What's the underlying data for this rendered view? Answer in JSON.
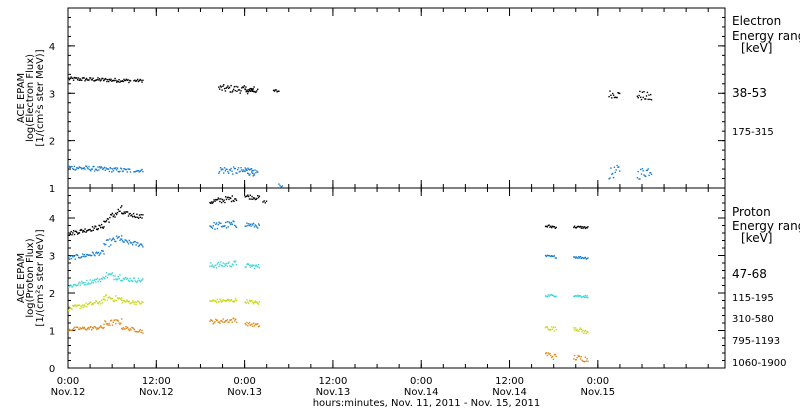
{
  "chart_data": [
    {
      "type": "scatter",
      "panel": "electron",
      "ylabel_lines": [
        "ACE EPAM",
        "log(Electron Flux)",
        "[1/(cm²s ster MeV)]"
      ],
      "ylim": [
        1,
        4.8
      ],
      "yticks": [
        "1",
        "2",
        "3",
        "4"
      ],
      "legend_title": [
        "Electron",
        "Energy range",
        "[keV]"
      ],
      "series": [
        {
          "name": "38-53",
          "color": "#000000",
          "segments": [
            {
              "x": [
                0.0,
                0.35
              ],
              "y": [
                3.32,
                3.28
              ],
              "amp": 0.04
            },
            {
              "x": [
                0.37,
                0.42
              ],
              "y": [
                3.28,
                3.28
              ],
              "amp": 0.03
            },
            {
              "x": [
                0.85,
                1.05
              ],
              "y": [
                3.12,
                3.08
              ],
              "amp": 0.08
            },
            {
              "x": [
                1.0,
                1.07
              ],
              "y": [
                3.08,
                3.06
              ],
              "amp": 0.04
            },
            {
              "x": [
                1.16,
                1.19
              ],
              "y": [
                3.06,
                3.06
              ],
              "amp": 0.04
            },
            {
              "x": [
                3.06,
                3.12
              ],
              "y": [
                3.0,
                2.98
              ],
              "amp": 0.08
            },
            {
              "x": [
                3.22,
                3.3
              ],
              "y": [
                2.98,
                2.92
              ],
              "amp": 0.1
            }
          ]
        },
        {
          "name": "175-315",
          "color": "#1a7fd0",
          "segments": [
            {
              "x": [
                0.0,
                0.35
              ],
              "y": [
                1.45,
                1.38
              ],
              "amp": 0.05
            },
            {
              "x": [
                0.37,
                0.42
              ],
              "y": [
                1.38,
                1.38
              ],
              "amp": 0.03
            },
            {
              "x": [
                0.85,
                1.05
              ],
              "y": [
                1.4,
                1.35
              ],
              "amp": 0.08
            },
            {
              "x": [
                1.0,
                1.07
              ],
              "y": [
                1.38,
                1.35
              ],
              "amp": 0.06
            },
            {
              "x": [
                1.19,
                1.21
              ],
              "y": [
                1.08,
                1.05
              ],
              "amp": 0.02
            },
            {
              "x": [
                3.06,
                3.12
              ],
              "y": [
                1.3,
                1.4
              ],
              "amp": 0.12
            },
            {
              "x": [
                3.22,
                3.3
              ],
              "y": [
                1.3,
                1.4
              ],
              "amp": 0.12
            }
          ]
        }
      ]
    },
    {
      "type": "scatter",
      "panel": "proton",
      "ylabel_lines": [
        "ACE EPAM",
        "log(Proton Flux)",
        "[1/(cm²s ster MeV)]"
      ],
      "ylim": [
        0,
        4.8
      ],
      "yticks": [
        "0",
        "1",
        "2",
        "3",
        "4"
      ],
      "xlabel": "hours:minutes, Nov. 11, 2011 - Nov. 15, 2011",
      "xlim": [
        0,
        3.72
      ],
      "xticks": [
        {
          "x": 0.0,
          "time": "0:00",
          "date": "Nov.12"
        },
        {
          "x": 0.5,
          "time": "12:00",
          "date": "Nov.12"
        },
        {
          "x": 1.0,
          "time": "0:00",
          "date": "Nov.13"
        },
        {
          "x": 1.5,
          "time": "12:00",
          "date": "Nov.13"
        },
        {
          "x": 2.0,
          "time": "0:00",
          "date": "Nov.14"
        },
        {
          "x": 2.5,
          "time": "12:00",
          "date": "Nov.14"
        },
        {
          "x": 3.0,
          "time": "0:00",
          "date": "Nov.15"
        }
      ],
      "legend_title": [
        "Proton",
        "Energy range",
        "[keV]"
      ],
      "series": [
        {
          "name": "47-68",
          "color": "#000000",
          "segments": [
            {
              "x": [
                0.0,
                0.2
              ],
              "y": [
                3.6,
                3.8
              ],
              "amp": 0.06
            },
            {
              "x": [
                0.2,
                0.3
              ],
              "y": [
                3.9,
                4.25
              ],
              "amp": 0.1
            },
            {
              "x": [
                0.3,
                0.42
              ],
              "y": [
                4.15,
                4.05
              ],
              "amp": 0.06
            },
            {
              "x": [
                0.8,
                0.95
              ],
              "y": [
                4.45,
                4.55
              ],
              "amp": 0.08
            },
            {
              "x": [
                1.0,
                1.08
              ],
              "y": [
                4.6,
                4.55
              ],
              "amp": 0.06
            },
            {
              "x": [
                1.1,
                1.12
              ],
              "y": [
                4.45,
                4.45
              ],
              "amp": 0.03
            },
            {
              "x": [
                2.7,
                2.76
              ],
              "y": [
                3.8,
                3.78
              ],
              "amp": 0.04
            },
            {
              "x": [
                2.86,
                2.94
              ],
              "y": [
                3.78,
                3.76
              ],
              "amp": 0.03
            }
          ]
        },
        {
          "name": "115-195",
          "color": "#1a7fd0",
          "segments": [
            {
              "x": [
                0.0,
                0.2
              ],
              "y": [
                2.95,
                3.1
              ],
              "amp": 0.06
            },
            {
              "x": [
                0.2,
                0.3
              ],
              "y": [
                3.3,
                3.5
              ],
              "amp": 0.1
            },
            {
              "x": [
                0.3,
                0.42
              ],
              "y": [
                3.4,
                3.3
              ],
              "amp": 0.06
            },
            {
              "x": [
                0.8,
                0.95
              ],
              "y": [
                3.8,
                3.85
              ],
              "amp": 0.1
            },
            {
              "x": [
                1.0,
                1.08
              ],
              "y": [
                3.85,
                3.8
              ],
              "amp": 0.06
            },
            {
              "x": [
                2.7,
                2.76
              ],
              "y": [
                3.0,
                2.98
              ],
              "amp": 0.03
            },
            {
              "x": [
                2.86,
                2.94
              ],
              "y": [
                2.98,
                2.95
              ],
              "amp": 0.03
            }
          ]
        },
        {
          "name": "310-580",
          "color": "#3fd6d6",
          "segments": [
            {
              "x": [
                0.0,
                0.2
              ],
              "y": [
                2.2,
                2.4
              ],
              "amp": 0.06
            },
            {
              "x": [
                0.2,
                0.3
              ],
              "y": [
                2.5,
                2.45
              ],
              "amp": 0.1
            },
            {
              "x": [
                0.3,
                0.42
              ],
              "y": [
                2.4,
                2.35
              ],
              "amp": 0.06
            },
            {
              "x": [
                0.8,
                0.95
              ],
              "y": [
                2.75,
                2.8
              ],
              "amp": 0.08
            },
            {
              "x": [
                1.0,
                1.08
              ],
              "y": [
                2.75,
                2.72
              ],
              "amp": 0.06
            },
            {
              "x": [
                2.7,
                2.76
              ],
              "y": [
                1.95,
                1.95
              ],
              "amp": 0.03
            },
            {
              "x": [
                2.86,
                2.94
              ],
              "y": [
                1.95,
                1.92
              ],
              "amp": 0.03
            }
          ]
        },
        {
          "name": "795-1193",
          "color": "#c8d81a",
          "segments": [
            {
              "x": [
                0.0,
                0.2
              ],
              "y": [
                1.6,
                1.8
              ],
              "amp": 0.06
            },
            {
              "x": [
                0.2,
                0.3
              ],
              "y": [
                1.9,
                1.85
              ],
              "amp": 0.08
            },
            {
              "x": [
                0.3,
                0.42
              ],
              "y": [
                1.8,
                1.75
              ],
              "amp": 0.05
            },
            {
              "x": [
                0.8,
                0.95
              ],
              "y": [
                1.8,
                1.82
              ],
              "amp": 0.05
            },
            {
              "x": [
                1.0,
                1.08
              ],
              "y": [
                1.8,
                1.75
              ],
              "amp": 0.05
            },
            {
              "x": [
                2.7,
                2.76
              ],
              "y": [
                1.1,
                1.05
              ],
              "amp": 0.06
            },
            {
              "x": [
                2.86,
                2.94
              ],
              "y": [
                1.1,
                0.95
              ],
              "amp": 0.06
            }
          ]
        },
        {
          "name": "1060-1900",
          "color": "#e08a1a",
          "segments": [
            {
              "x": [
                0.0,
                0.2
              ],
              "y": [
                1.05,
                1.1
              ],
              "amp": 0.05
            },
            {
              "x": [
                0.2,
                0.3
              ],
              "y": [
                1.2,
                1.25
              ],
              "amp": 0.08
            },
            {
              "x": [
                0.3,
                0.42
              ],
              "y": [
                1.1,
                1.0
              ],
              "amp": 0.05
            },
            {
              "x": [
                0.8,
                0.95
              ],
              "y": [
                1.25,
                1.3
              ],
              "amp": 0.06
            },
            {
              "x": [
                1.0,
                1.08
              ],
              "y": [
                1.2,
                1.15
              ],
              "amp": 0.05
            },
            {
              "x": [
                2.7,
                2.76
              ],
              "y": [
                0.4,
                0.3
              ],
              "amp": 0.08
            },
            {
              "x": [
                2.86,
                2.94
              ],
              "y": [
                0.3,
                0.25
              ],
              "amp": 0.08
            }
          ]
        }
      ]
    }
  ]
}
